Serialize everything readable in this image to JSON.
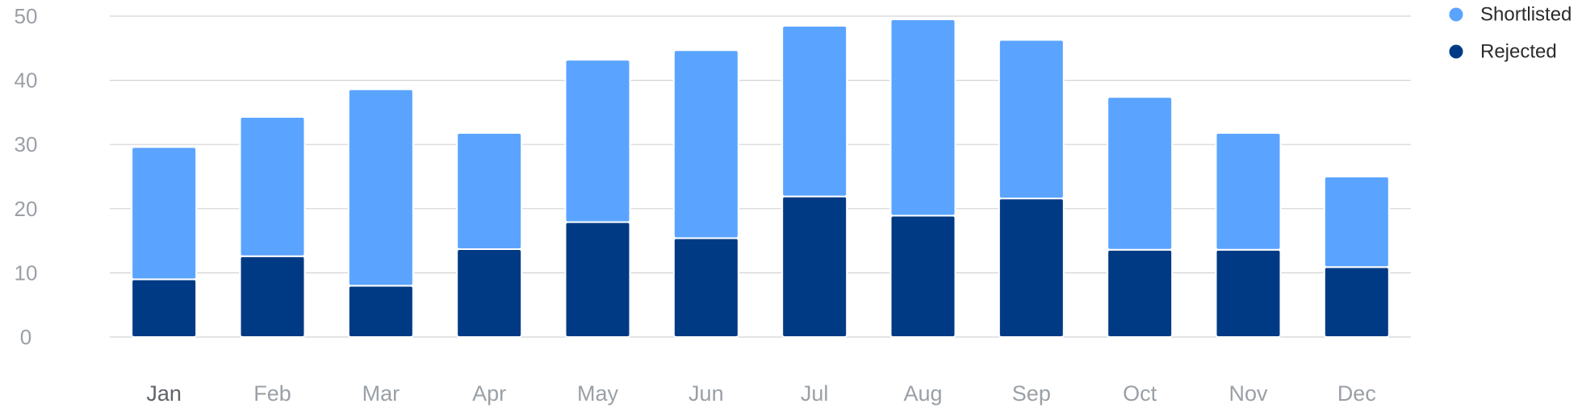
{
  "chart_data": {
    "type": "bar",
    "stacked": true,
    "categories": [
      "Jan",
      "Feb",
      "Mar",
      "Apr",
      "May",
      "Jun",
      "Jul",
      "Aug",
      "Sep",
      "Oct",
      "Nov",
      "Dec"
    ],
    "active_category": "Jan",
    "series": [
      {
        "name": "Rejected",
        "color": "#003A85",
        "values": [
          9,
          12.6,
          8,
          13.7,
          17.9,
          15.4,
          21.9,
          18.9,
          21.6,
          13.6,
          13.6,
          10.9
        ]
      },
      {
        "name": "Shortlisted",
        "color": "#5AA4FF",
        "values": [
          20.6,
          21.7,
          30.6,
          18.1,
          25.3,
          29.3,
          26.6,
          30.6,
          24.7,
          23.8,
          18.2,
          14.1
        ]
      }
    ],
    "y_ticks": [
      0,
      10,
      20,
      30,
      40,
      50
    ],
    "ylim": [
      0,
      50
    ],
    "grid": true,
    "legend": {
      "placement": "top-right",
      "order": [
        "Shortlisted",
        "Rejected"
      ]
    },
    "title": "",
    "xlabel": "",
    "ylabel": ""
  }
}
